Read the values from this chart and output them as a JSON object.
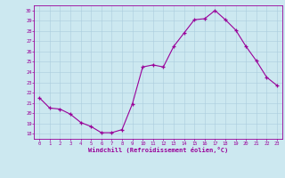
{
  "x": [
    0,
    1,
    2,
    3,
    4,
    5,
    6,
    7,
    8,
    9,
    10,
    11,
    12,
    13,
    14,
    15,
    16,
    17,
    18,
    19,
    20,
    21,
    22,
    23
  ],
  "y": [
    21.5,
    20.5,
    20.4,
    19.9,
    19.1,
    18.7,
    18.1,
    18.1,
    18.4,
    20.9,
    24.5,
    24.7,
    24.5,
    26.5,
    27.8,
    29.1,
    29.2,
    30.0,
    29.1,
    28.1,
    26.5,
    25.1,
    23.5,
    22.7
  ],
  "xlabel": "Windchill (Refroidissement éolien,°C)",
  "ylim": [
    17.5,
    30.5
  ],
  "xlim": [
    -0.5,
    23.5
  ],
  "yticks": [
    18,
    19,
    20,
    21,
    22,
    23,
    24,
    25,
    26,
    27,
    28,
    29,
    30
  ],
  "xticks": [
    0,
    1,
    2,
    3,
    4,
    5,
    6,
    7,
    8,
    9,
    10,
    11,
    12,
    13,
    14,
    15,
    16,
    17,
    18,
    19,
    20,
    21,
    22,
    23
  ],
  "line_color": "#990099",
  "marker_color": "#990099",
  "bg_color": "#cce8f0",
  "grid_color": "#aaccdd",
  "axis_color": "#990099",
  "tick_label_color": "#990099",
  "xlabel_color": "#990099",
  "figsize": [
    3.2,
    2.0
  ],
  "dpi": 100
}
